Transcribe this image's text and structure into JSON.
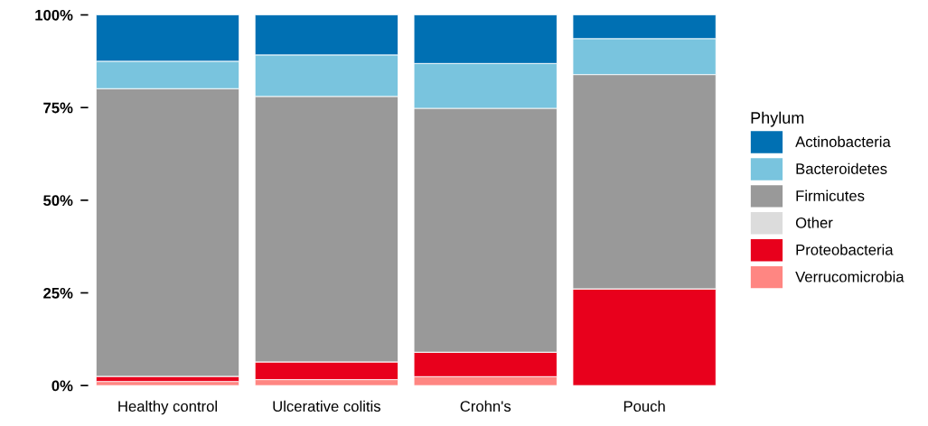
{
  "chart_data": {
    "type": "bar",
    "stacked": true,
    "legend_title": "Phylum",
    "legend": "right",
    "grid": false,
    "categories": [
      "Healthy control",
      "Ulcerative colitis",
      "Crohn's",
      "Pouch"
    ],
    "series": [
      {
        "name": "Verrucomicrobia",
        "color": "#ff8682",
        "values": [
          1.1,
          1.6,
          2.4,
          0
        ]
      },
      {
        "name": "Proteobacteria",
        "color": "#e8001c",
        "values": [
          1.4,
          4.8,
          6.6,
          26.1
        ]
      },
      {
        "name": "Other",
        "color": "#dcdcdc",
        "values": [
          0,
          0,
          0,
          0
        ]
      },
      {
        "name": "Firmicutes",
        "color": "#999999",
        "values": [
          77.6,
          71.6,
          65.8,
          57.8
        ]
      },
      {
        "name": "Bacteroidetes",
        "color": "#79c4de",
        "values": [
          7.4,
          11.2,
          12.1,
          9.7
        ]
      },
      {
        "name": "Actinobacteria",
        "color": "#0070b3",
        "values": [
          12.5,
          10.8,
          13.1,
          6.4
        ]
      }
    ],
    "ylim": [
      0,
      100
    ],
    "yticks": [
      {
        "value": 0,
        "label": "0%"
      },
      {
        "value": 25,
        "label": "25%"
      },
      {
        "value": 50,
        "label": "50%"
      },
      {
        "value": 75,
        "label": "75%"
      },
      {
        "value": 100,
        "label": "100%"
      }
    ]
  }
}
